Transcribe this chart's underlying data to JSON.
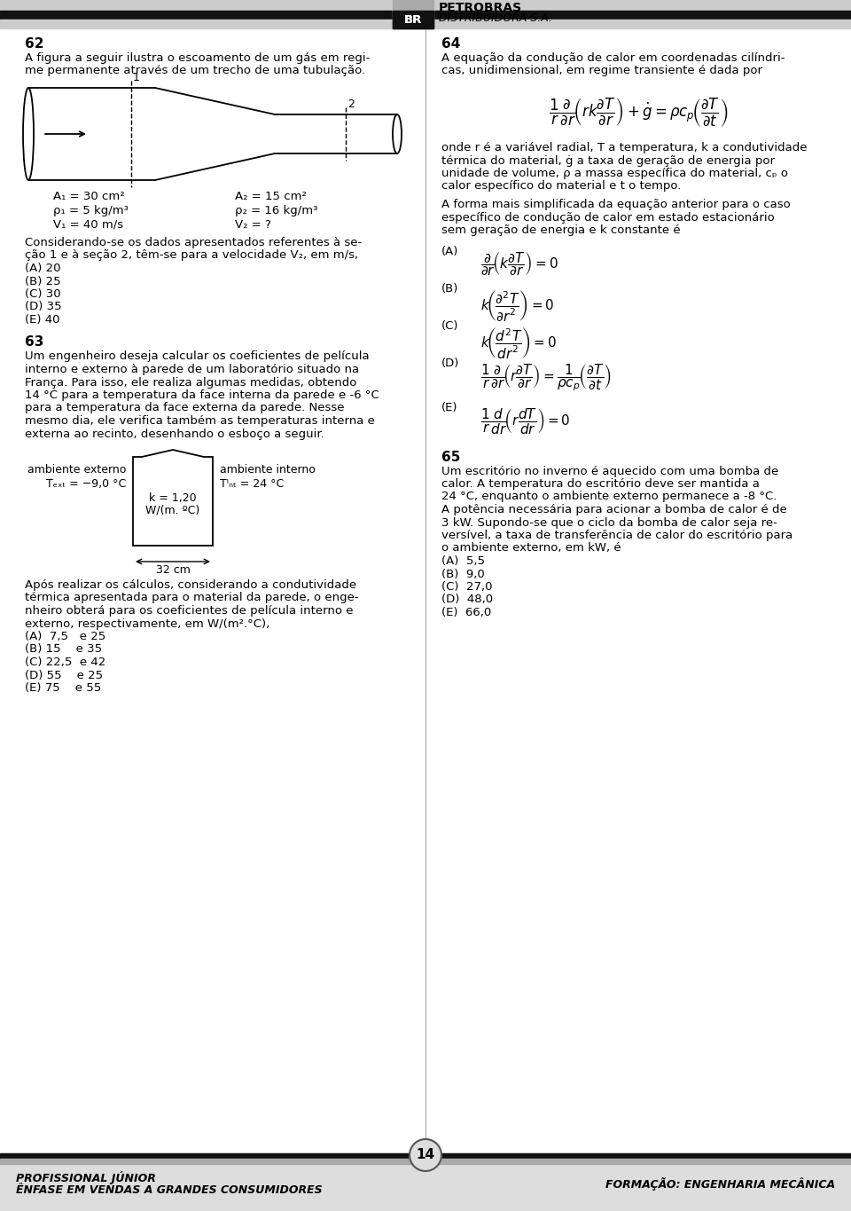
{
  "bg_color": "#ffffff",
  "q62_intro": "A figura a seguir ilustra o escoamento de um gás em regi-\nme permanente através de um trecho de uma tubulação.",
  "q62_question": "Considerando-se os dados apresentados referentes à se-\nção 1 e à seção 2, têm-se para a velocidade V₂, em m/s,",
  "q62_options": [
    "(A) 20",
    "(B) 25",
    "(C) 30",
    "(D) 35",
    "(E) 40"
  ],
  "q63_text": "Um engenheiro deseja calcular os coeficientes de película\ninterno e externo à parede de um laboratório situado na\nFrança. Para isso, ele realiza algumas medidas, obtendo\n14 °C para a temperatura da face interna da parede e -6 °C\npara a temperatura da face externa da parede. Nesse\nmesmo dia, ele verifica também as temperaturas interna e\nexterna ao recinto, desenhando o esboço a seguir.",
  "q63_after": "Após realizar os cálculos, considerando a condutividade\ntérmica apresentada para o material da parede, o enge-\nnheiro obterá para os coeficientes de película interno e\nexterno, respectivamente, em W/(m².°C),",
  "q63_options": [
    "(A)  7,5   e 25",
    "(B) 15    e 35",
    "(C) 22,5  e 42",
    "(D) 55    e 25",
    "(E) 75    e 55"
  ],
  "q64_intro": "A equação da condução de calor em coordenadas cilíndri-\ncas, unidimensional, em regime transiente é dada por",
  "q64_after": "onde r é a variável radial, T a temperatura, k a condutividade\ntérmica do material, ġ a taxa de geração de energia por\nunidade de volume, ρ a massa específica do material, cₚ o\ncalor específico do material e t o tempo.",
  "q64_simplified": "A forma mais simplificada da equação anterior para o caso\nespecífico de condução de calor em estado estacionário\nsem geração de energia e k constante é",
  "q65_text": "Um escritório no inverno é aquecido com uma bomba de\ncalor. A temperatura do escritório deve ser mantida a\n24 °C, enquanto o ambiente externo permanece a -8 °C.\nA potência necessária para acionar a bomba de calor é de\n3 kW. Supondo-se que o ciclo da bomba de calor seja re-\nversível, a taxa de transferência de calor do escritório para\no ambiente externo, em kW, é",
  "q65_options": [
    "(A)  5,5",
    "(B)  9,0",
    "(C)  27,0",
    "(D)  48,0",
    "(E)  66,0"
  ],
  "footer_left_line1": "PROFISSIONAL JÚNIOR",
  "footer_left_line2": "ÊNFASE EM VENDAS A GRANDES CONSUMIDORES",
  "footer_right": "FORMAÇÃO: ENGENHARIA MECÂNICA",
  "page_number": "14"
}
